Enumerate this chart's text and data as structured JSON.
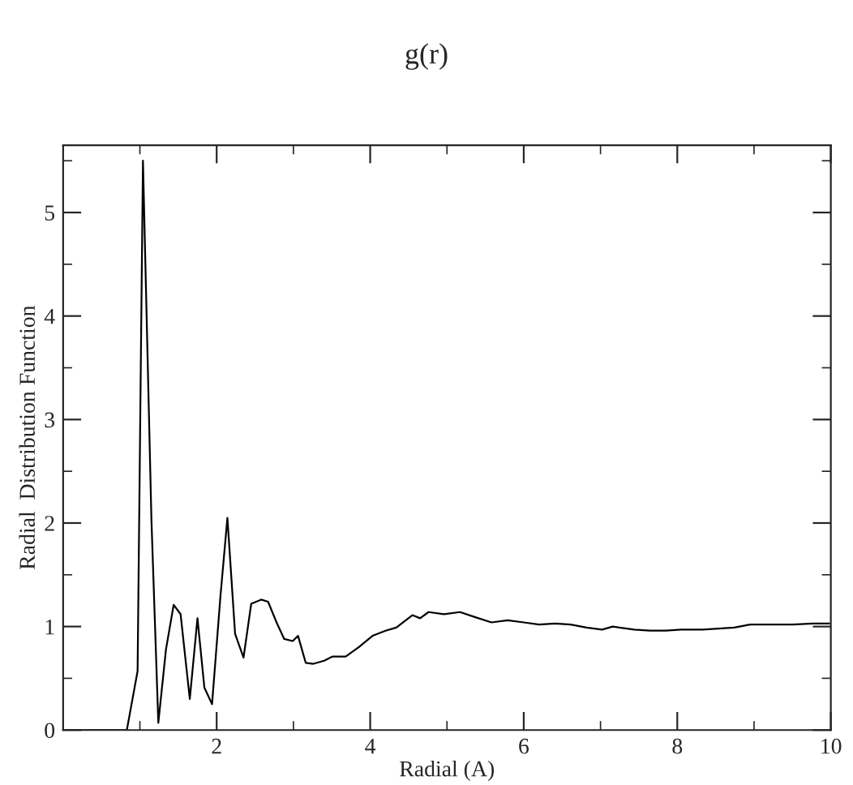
{
  "chart_data": {
    "type": "line",
    "title": "g(r)",
    "xlabel": "Radial (A)",
    "ylabel": "Radial  Distribution Function",
    "series": [
      {
        "color": "#000000",
        "x": [
          0,
          0.83,
          0.97,
          1.04,
          1.15,
          1.24,
          1.34,
          1.44,
          1.53,
          1.65,
          1.75,
          1.84,
          1.94,
          2.05,
          2.14,
          2.24,
          2.35,
          2.45,
          2.58,
          2.67,
          2.78,
          2.88,
          2.99,
          3.06,
          3.16,
          3.26,
          3.4,
          3.51,
          3.68,
          3.85,
          4.03,
          4.2,
          4.34,
          4.55,
          4.65,
          4.76,
          4.96,
          5.17,
          5.37,
          5.58,
          5.79,
          6.0,
          6.2,
          6.41,
          6.61,
          6.82,
          7.02,
          7.16,
          7.44,
          7.64,
          7.85,
          8.05,
          8.33,
          8.74,
          8.95,
          9.22,
          9.5,
          9.77,
          9.98
        ],
        "values": [
          0,
          0,
          0.57,
          5.5,
          2.04,
          0.07,
          0.78,
          1.21,
          1.12,
          0.3,
          1.08,
          0.41,
          0.25,
          1.3,
          2.05,
          0.93,
          0.7,
          1.22,
          1.26,
          1.24,
          1.04,
          0.88,
          0.86,
          0.91,
          0.65,
          0.64,
          0.67,
          0.71,
          0.71,
          0.8,
          0.91,
          0.96,
          0.99,
          1.11,
          1.08,
          1.14,
          1.12,
          1.14,
          1.09,
          1.04,
          1.06,
          1.04,
          1.02,
          1.03,
          1.02,
          0.99,
          0.97,
          1.0,
          0.97,
          0.96,
          0.96,
          0.97,
          0.97,
          0.99,
          1.02,
          1.02,
          1.02,
          1.03,
          1.03
        ]
      }
    ],
    "xlim": [
      0,
      10
    ],
    "ylim": [
      0,
      5.65
    ],
    "xticks": [
      2,
      4,
      6,
      8,
      10
    ],
    "yticks": [
      0,
      1,
      2,
      3,
      4,
      5
    ],
    "grid": false,
    "legend": false,
    "marker": "none",
    "line_style": "solid"
  }
}
